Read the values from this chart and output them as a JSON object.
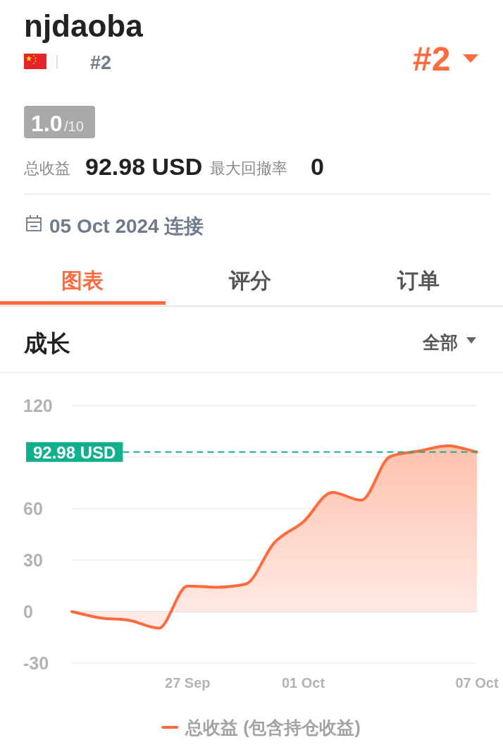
{
  "chart_data": {
    "type": "area",
    "title": "成长",
    "annotations": [
      "njdaoba",
      "#2",
      "#2",
      "1.0",
      "/10",
      "总收益",
      "92.98 USD",
      "最大回撤率",
      "0",
      "05 Oct 2024 连接",
      "图表",
      "评分",
      "订单",
      "全部"
    ],
    "x": [
      "2024-09-23",
      "2024-09-24",
      "2024-09-25",
      "2024-09-26",
      "2024-09-27",
      "2024-09-28",
      "2024-09-29",
      "2024-09-30",
      "2024-10-01",
      "2024-10-02",
      "2024-10-03",
      "2024-10-04",
      "2024-10-05",
      "2024-10-06",
      "2024-10-07"
    ],
    "series": [
      {
        "name": "总收益 (包含持仓收益)",
        "color": "#ff6b3d",
        "values": [
          0,
          -3.7,
          -5.1,
          -9.7,
          14.9,
          14.2,
          16,
          40.2,
          52.3,
          69.5,
          64.9,
          90.4,
          93.6,
          96.6,
          93
        ]
      }
    ],
    "xlim": [
      "2024-09-23",
      "2024-10-07"
    ],
    "xticks": [
      {
        "value": "2024-09-27",
        "label": "27 Sep"
      },
      {
        "value": "2024-10-01",
        "label": "01 Oct"
      },
      {
        "value": "2024-10-07",
        "label": "07 Oct"
      }
    ],
    "ylim": [
      -30,
      120
    ],
    "yticks": [
      -30,
      0,
      30,
      60,
      {
        "value": 90,
        "label": null
      },
      120
    ],
    "grid": "y",
    "legend": "bottom",
    "ref_lines": [
      {
        "axis": "y",
        "value": 92.98,
        "label": "92.98 USD",
        "color": "#10b08f",
        "line_style": "dashed"
      }
    ]
  }
}
